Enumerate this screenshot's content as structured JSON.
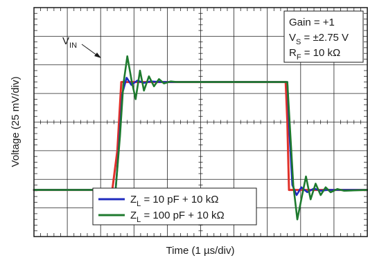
{
  "chart_data": {
    "type": "line",
    "xlabel": "Time (1 µs/div)",
    "ylabel": "Voltage (25 mV/div)",
    "x_divisions": 10,
    "y_divisions": 8,
    "grid": true,
    "xlim": [
      0,
      10
    ],
    "ylim": [
      0,
      8
    ],
    "annotation": {
      "text": "V",
      "subscript": "IN"
    },
    "info_box": {
      "lines": [
        {
          "main": "Gain = +1",
          "sub": "",
          "rest": ""
        },
        {
          "main": "V",
          "sub": "S",
          "rest": " = ±2.75 V"
        },
        {
          "main": "R",
          "sub": "F",
          "rest": " = 10 kΩ"
        }
      ]
    },
    "legend": {
      "position": "bottom-center",
      "entries": [
        {
          "main": "Z",
          "sub": "L",
          "rest": " = 10 pF + 10 kΩ",
          "color": "#1f2bbf"
        },
        {
          "main": "Z",
          "sub": "L",
          "rest": " = 100 pF + 10 kΩ",
          "color": "#1e7a2e"
        }
      ]
    },
    "series": [
      {
        "color": "#e0312a",
        "x": [
          0,
          2.35,
          2.5,
          2.62,
          2.75,
          7.55,
          7.6,
          7.65,
          7.75,
          10
        ],
        "y": [
          1.63,
          1.63,
          3.0,
          5.4,
          5.4,
          5.4,
          4.0,
          1.63,
          1.63,
          1.63
        ]
      },
      {
        "color": "#1f2bbf",
        "x": [
          0,
          2.45,
          2.55,
          2.65,
          2.78,
          2.92,
          3.1,
          3.3,
          3.5,
          3.8,
          4.0,
          7.6,
          7.67,
          7.75,
          7.88,
          8.02,
          8.2,
          8.4,
          8.6,
          8.8,
          10
        ],
        "y": [
          1.63,
          1.63,
          3.2,
          5.0,
          5.55,
          5.3,
          5.45,
          5.37,
          5.42,
          5.4,
          5.4,
          5.4,
          3.5,
          1.8,
          1.45,
          1.72,
          1.55,
          1.68,
          1.6,
          1.63,
          1.63
        ]
      },
      {
        "color": "#1e7a2e",
        "x": [
          0,
          2.45,
          2.58,
          2.68,
          2.8,
          2.93,
          3.05,
          3.18,
          3.3,
          3.45,
          3.6,
          3.75,
          3.9,
          4.1,
          4.3,
          7.6,
          7.68,
          7.78,
          7.9,
          8.03,
          8.16,
          8.3,
          8.45,
          8.6,
          8.75,
          8.9,
          9.1,
          9.3,
          10
        ],
        "y": [
          1.63,
          1.63,
          3.5,
          5.3,
          6.3,
          5.45,
          4.8,
          5.8,
          5.1,
          5.6,
          5.25,
          5.5,
          5.35,
          5.42,
          5.4,
          5.4,
          3.8,
          1.8,
          0.6,
          1.35,
          2.1,
          1.3,
          1.85,
          1.45,
          1.72,
          1.55,
          1.66,
          1.6,
          1.63
        ]
      }
    ]
  }
}
